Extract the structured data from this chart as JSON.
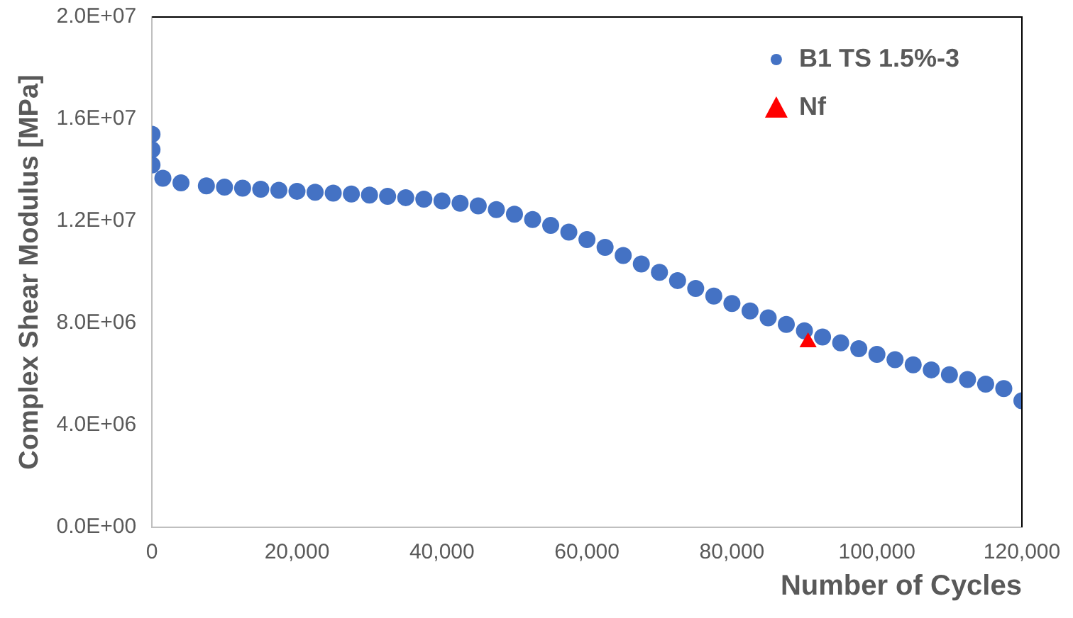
{
  "chart_data": {
    "type": "scatter",
    "xlabel": "Number of Cycles",
    "ylabel": "Complex Shear Modulus [MPa]",
    "xlim": [
      0,
      120000
    ],
    "ylim": [
      0,
      20000000
    ],
    "xticks": [
      {
        "value": 0,
        "label": "0"
      },
      {
        "value": 20000,
        "label": "20,000"
      },
      {
        "value": 40000,
        "label": "40,000"
      },
      {
        "value": 60000,
        "label": "60,000"
      },
      {
        "value": 80000,
        "label": "80,000"
      },
      {
        "value": 100000,
        "label": "100,000"
      },
      {
        "value": 120000,
        "label": "120,000"
      }
    ],
    "yticks": [
      {
        "value": 0,
        "label": "0.0E+00"
      },
      {
        "value": 4000000,
        "label": "4.0E+06"
      },
      {
        "value": 8000000,
        "label": "8.0E+06"
      },
      {
        "value": 12000000,
        "label": "1.2E+07"
      },
      {
        "value": 16000000,
        "label": "1.6E+07"
      },
      {
        "value": 20000000,
        "label": "2.0E+07"
      }
    ],
    "grid": false,
    "legend": "top right",
    "marker": "circle",
    "series": [
      {
        "name": "B1 TS 1.5%-3",
        "color": "#4472c4",
        "x": [
          0,
          0,
          0,
          1500,
          4000,
          7500,
          10000,
          12500,
          15000,
          17500,
          20000,
          22500,
          25000,
          27500,
          30000,
          32500,
          35000,
          37500,
          40000,
          42500,
          45000,
          47500,
          50000,
          52500,
          55000,
          57500,
          60000,
          62500,
          65000,
          67500,
          70000,
          72500,
          75000,
          77500,
          80000,
          82500,
          85000,
          87500,
          90000,
          92500,
          95000,
          97500,
          100000,
          102500,
          105000,
          107500,
          110000,
          112500,
          115000,
          117500,
          120000
        ],
        "values": [
          15400000,
          14800000,
          14200000,
          13680000,
          13500000,
          13380000,
          13330000,
          13290000,
          13250000,
          13210000,
          13170000,
          13130000,
          13100000,
          13060000,
          13020000,
          12970000,
          12920000,
          12860000,
          12790000,
          12700000,
          12600000,
          12450000,
          12270000,
          12060000,
          11830000,
          11570000,
          11280000,
          10970000,
          10650000,
          10320000,
          9990000,
          9670000,
          9360000,
          9060000,
          8770000,
          8480000,
          8210000,
          7950000,
          7700000,
          7460000,
          7230000,
          7000000,
          6780000,
          6570000,
          6370000,
          6170000,
          5980000,
          5790000,
          5610000,
          5440000,
          4960000
        ]
      },
      {
        "name": "Nf",
        "color": "#ff0000",
        "marker": "triangle",
        "x": [
          90500
        ],
        "values": [
          7250000
        ]
      }
    ]
  }
}
